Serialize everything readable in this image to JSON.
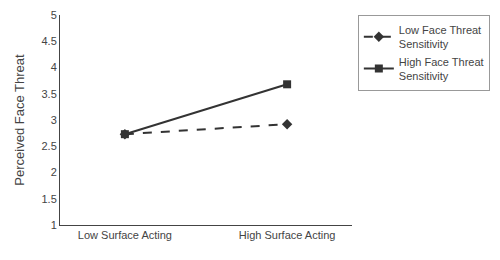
{
  "chart_data": {
    "type": "line",
    "categories": [
      "Low Surface Acting",
      "High Surface Acting"
    ],
    "series": [
      {
        "name": "Low Face Threat\nSensitivity",
        "color": "#333333",
        "marker": "diamond",
        "line_style": "dashed",
        "values": [
          2.73,
          2.92
        ]
      },
      {
        "name": "High Face Threat\nSensitivity",
        "color": "#333333",
        "marker": "square",
        "line_style": "solid",
        "values": [
          2.73,
          3.68
        ]
      }
    ],
    "ylabel": "Perceived Face Threat",
    "ylim": [
      1,
      5
    ],
    "yticks": [
      1,
      1.5,
      2,
      2.5,
      3,
      3.5,
      4,
      4.5,
      5
    ],
    "grid": false,
    "legend": "right"
  }
}
